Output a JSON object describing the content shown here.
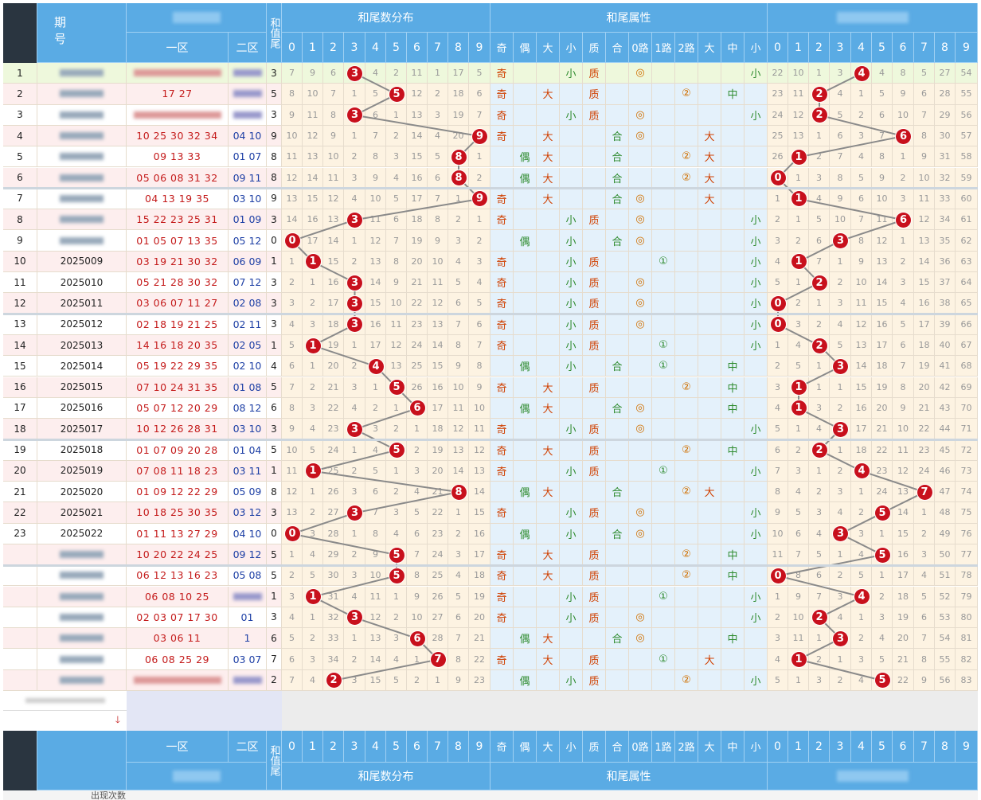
{
  "header": {
    "period_label": "期号",
    "zone1_label": "一区",
    "zone2_label": "二区",
    "sum_tail_label": "和值尾",
    "dist_title": "和尾数分布",
    "attr_title": "和尾属性",
    "digits": [
      "0",
      "1",
      "2",
      "3",
      "4",
      "5",
      "6",
      "7",
      "8",
      "9"
    ],
    "attr_cols": [
      "奇",
      "偶",
      "大",
      "小",
      "质",
      "合",
      "0路",
      "1路",
      "2路",
      "大",
      "中",
      "小"
    ]
  },
  "footer": {
    "appearance_label": "出现次数"
  },
  "colors": {
    "header_bg": "#5aabe4",
    "ball": "#c8101c",
    "row_highlight": "#f0f9e0",
    "row_even": "#fdeeee"
  },
  "rows": [
    {
      "idx": "1",
      "issue": "",
      "z1": "",
      "z2": "",
      "sum": "3",
      "dist": [
        "7",
        "9",
        "6",
        "3",
        "4",
        "2",
        "11",
        "1",
        "17",
        "5"
      ],
      "attrs": [
        "奇",
        "",
        "",
        "小",
        "质",
        "",
        "◎",
        "",
        "",
        "",
        "",
        "小"
      ],
      "dist2": [
        "22",
        "10",
        "1",
        "3",
        "4",
        "4",
        "8",
        "5",
        "27",
        "54"
      ],
      "tail2": 4
    },
    {
      "idx": "2",
      "issue": "",
      "z1": "17 27",
      "z2": "",
      "sum": "5",
      "dist": [
        "8",
        "10",
        "7",
        "1",
        "5",
        "5",
        "12",
        "2",
        "18",
        "6"
      ],
      "attrs": [
        "奇",
        "",
        "大",
        "",
        "质",
        "",
        "",
        "",
        "②",
        "",
        "中",
        ""
      ],
      "dist2": [
        "23",
        "11",
        "2",
        "4",
        "1",
        "5",
        "9",
        "6",
        "28",
        "55"
      ],
      "tail2": 2
    },
    {
      "idx": "3",
      "issue": "",
      "z1": "",
      "z2": "",
      "sum": "3",
      "dist": [
        "9",
        "11",
        "8",
        "3",
        "6",
        "1",
        "13",
        "3",
        "19",
        "7"
      ],
      "attrs": [
        "奇",
        "",
        "",
        "小",
        "质",
        "",
        "◎",
        "",
        "",
        "",
        "",
        "小"
      ],
      "dist2": [
        "24",
        "12",
        "2",
        "5",
        "2",
        "6",
        "10",
        "7",
        "29",
        "56"
      ],
      "tail2": 2
    },
    {
      "idx": "4",
      "issue": "",
      "z1": "10 25 30 32 34",
      "z2": "04 10",
      "sum": "9",
      "dist": [
        "10",
        "12",
        "9",
        "1",
        "7",
        "2",
        "14",
        "4",
        "20",
        "9"
      ],
      "attrs": [
        "奇",
        "",
        "大",
        "",
        "",
        "合",
        "◎",
        "",
        "",
        "大",
        "",
        ""
      ],
      "dist2": [
        "25",
        "13",
        "1",
        "6",
        "3",
        "7",
        "6",
        "8",
        "30",
        "57"
      ],
      "tail2": 6
    },
    {
      "idx": "5",
      "issue": "",
      "z1": "09 13 33",
      "z2": "01 07",
      "sum": "8",
      "dist": [
        "11",
        "13",
        "10",
        "2",
        "8",
        "3",
        "15",
        "5",
        "8",
        "1"
      ],
      "attrs": [
        "",
        "偶",
        "大",
        "",
        "",
        "合",
        "",
        "",
        "②",
        "大",
        "",
        ""
      ],
      "dist2": [
        "26",
        "1",
        "2",
        "7",
        "4",
        "8",
        "1",
        "9",
        "31",
        "58"
      ],
      "tail2": 1
    },
    {
      "idx": "6",
      "issue": "",
      "z1": "05 06 08 31 32",
      "z2": "09 11",
      "sum": "8",
      "dist": [
        "12",
        "14",
        "11",
        "3",
        "9",
        "4",
        "16",
        "6",
        "8",
        "2"
      ],
      "attrs": [
        "",
        "偶",
        "大",
        "",
        "",
        "合",
        "",
        "",
        "②",
        "大",
        "",
        ""
      ],
      "dist2": [
        "0",
        "1",
        "3",
        "8",
        "5",
        "9",
        "2",
        "10",
        "32",
        "59"
      ],
      "tail2": 0
    },
    {
      "idx": "7",
      "issue": "",
      "z1": "04 13 19 35",
      "z2": "03 10",
      "sum": "9",
      "dist": [
        "13",
        "15",
        "12",
        "4",
        "10",
        "5",
        "17",
        "7",
        "1",
        "9"
      ],
      "attrs": [
        "奇",
        "",
        "大",
        "",
        "",
        "合",
        "◎",
        "",
        "",
        "大",
        "",
        ""
      ],
      "dist2": [
        "1",
        "1",
        "4",
        "9",
        "6",
        "10",
        "3",
        "11",
        "33",
        "60"
      ],
      "tail2": 1
    },
    {
      "idx": "8",
      "issue": "",
      "z1": "15 22 23 25 31",
      "z2": "01 09",
      "sum": "3",
      "dist": [
        "14",
        "16",
        "13",
        "3",
        "11",
        "6",
        "18",
        "8",
        "2",
        "1"
      ],
      "attrs": [
        "奇",
        "",
        "",
        "小",
        "质",
        "",
        "◎",
        "",
        "",
        "",
        "",
        "小"
      ],
      "dist2": [
        "2",
        "1",
        "5",
        "10",
        "7",
        "11",
        "6",
        "12",
        "34",
        "61"
      ],
      "tail2": 6
    },
    {
      "idx": "9",
      "issue": "",
      "z1": "01 05 07 13 35",
      "z2": "05 12",
      "sum": "0",
      "dist": [
        "0",
        "17",
        "14",
        "1",
        "12",
        "7",
        "19",
        "9",
        "3",
        "2"
      ],
      "attrs": [
        "",
        "偶",
        "",
        "小",
        "",
        "合",
        "◎",
        "",
        "",
        "",
        "",
        "小"
      ],
      "dist2": [
        "3",
        "2",
        "6",
        "3",
        "8",
        "12",
        "1",
        "13",
        "35",
        "62"
      ],
      "tail2": 3
    },
    {
      "idx": "10",
      "issue": "2025009",
      "z1": "03 19 21 30 32",
      "z2": "06 09",
      "sum": "1",
      "dist": [
        "1",
        "1",
        "15",
        "2",
        "13",
        "8",
        "20",
        "10",
        "4",
        "3"
      ],
      "attrs": [
        "奇",
        "",
        "",
        "小",
        "质",
        "",
        "",
        "①",
        "",
        "",
        "",
        "小"
      ],
      "dist2": [
        "4",
        "1",
        "7",
        "1",
        "9",
        "13",
        "2",
        "14",
        "36",
        "63"
      ],
      "tail2": 1
    },
    {
      "idx": "11",
      "issue": "2025010",
      "z1": "05 21 28 30 32",
      "z2": "07 12",
      "sum": "3",
      "dist": [
        "2",
        "1",
        "16",
        "3",
        "14",
        "9",
        "21",
        "11",
        "5",
        "4"
      ],
      "attrs": [
        "奇",
        "",
        "",
        "小",
        "质",
        "",
        "◎",
        "",
        "",
        "",
        "",
        "小"
      ],
      "dist2": [
        "5",
        "1",
        "2",
        "2",
        "10",
        "14",
        "3",
        "15",
        "37",
        "64"
      ],
      "tail2": 2
    },
    {
      "idx": "12",
      "issue": "2025011",
      "z1": "03 06 07 11 27",
      "z2": "02 08",
      "sum": "3",
      "dist": [
        "3",
        "2",
        "17",
        "3",
        "15",
        "10",
        "22",
        "12",
        "6",
        "5"
      ],
      "attrs": [
        "奇",
        "",
        "",
        "小",
        "质",
        "",
        "◎",
        "",
        "",
        "",
        "",
        "小"
      ],
      "dist2": [
        "0",
        "2",
        "1",
        "3",
        "11",
        "15",
        "4",
        "16",
        "38",
        "65"
      ],
      "tail2": 0
    },
    {
      "idx": "13",
      "issue": "2025012",
      "z1": "02 18 19 21 25",
      "z2": "02 11",
      "sum": "3",
      "dist": [
        "4",
        "3",
        "18",
        "3",
        "16",
        "11",
        "23",
        "13",
        "7",
        "6"
      ],
      "attrs": [
        "奇",
        "",
        "",
        "小",
        "质",
        "",
        "◎",
        "",
        "",
        "",
        "",
        "小"
      ],
      "dist2": [
        "0",
        "3",
        "2",
        "4",
        "12",
        "16",
        "5",
        "17",
        "39",
        "66"
      ],
      "tail2": 0
    },
    {
      "idx": "14",
      "issue": "2025013",
      "z1": "14 16 18 20 35",
      "z2": "02 05",
      "sum": "1",
      "dist": [
        "5",
        "1",
        "19",
        "1",
        "17",
        "12",
        "24",
        "14",
        "8",
        "7"
      ],
      "attrs": [
        "奇",
        "",
        "",
        "小",
        "质",
        "",
        "",
        "①",
        "",
        "",
        "",
        "小"
      ],
      "dist2": [
        "1",
        "4",
        "2",
        "5",
        "13",
        "17",
        "6",
        "18",
        "40",
        "67"
      ],
      "tail2": 2
    },
    {
      "idx": "15",
      "issue": "2025014",
      "z1": "05 19 22 29 35",
      "z2": "02 10",
      "sum": "4",
      "dist": [
        "6",
        "1",
        "20",
        "2",
        "4",
        "13",
        "25",
        "15",
        "9",
        "8"
      ],
      "attrs": [
        "",
        "偶",
        "",
        "小",
        "",
        "合",
        "",
        "①",
        "",
        "",
        "中",
        ""
      ],
      "dist2": [
        "2",
        "5",
        "1",
        "3",
        "14",
        "18",
        "7",
        "19",
        "41",
        "68"
      ],
      "tail2": 3
    },
    {
      "idx": "16",
      "issue": "2025015",
      "z1": "07 10 24 31 35",
      "z2": "01 08",
      "sum": "5",
      "dist": [
        "7",
        "2",
        "21",
        "3",
        "1",
        "5",
        "26",
        "16",
        "10",
        "9"
      ],
      "attrs": [
        "奇",
        "",
        "大",
        "",
        "质",
        "",
        "",
        "",
        "②",
        "",
        "中",
        ""
      ],
      "dist2": [
        "3",
        "1",
        "1",
        "1",
        "15",
        "19",
        "8",
        "20",
        "42",
        "69"
      ],
      "tail2": 1
    },
    {
      "idx": "17",
      "issue": "2025016",
      "z1": "05 07 12 20 29",
      "z2": "08 12",
      "sum": "6",
      "dist": [
        "8",
        "3",
        "22",
        "4",
        "2",
        "1",
        "6",
        "17",
        "11",
        "10"
      ],
      "attrs": [
        "",
        "偶",
        "大",
        "",
        "",
        "合",
        "◎",
        "",
        "",
        "",
        "中",
        ""
      ],
      "dist2": [
        "4",
        "1",
        "3",
        "2",
        "16",
        "20",
        "9",
        "21",
        "43",
        "70"
      ],
      "tail2": 1
    },
    {
      "idx": "18",
      "issue": "2025017",
      "z1": "10 12 26 28 31",
      "z2": "03 10",
      "sum": "3",
      "dist": [
        "9",
        "4",
        "23",
        "3",
        "3",
        "2",
        "1",
        "18",
        "12",
        "11"
      ],
      "attrs": [
        "奇",
        "",
        "",
        "小",
        "质",
        "",
        "◎",
        "",
        "",
        "",
        "",
        "小"
      ],
      "dist2": [
        "5",
        "1",
        "4",
        "3",
        "17",
        "21",
        "10",
        "22",
        "44",
        "71"
      ],
      "tail2": 3
    },
    {
      "idx": "19",
      "issue": "2025018",
      "z1": "01 07 09 20 28",
      "z2": "01 04",
      "sum": "5",
      "dist": [
        "10",
        "5",
        "24",
        "1",
        "4",
        "5",
        "2",
        "19",
        "13",
        "12"
      ],
      "attrs": [
        "奇",
        "",
        "大",
        "",
        "质",
        "",
        "",
        "",
        "②",
        "",
        "中",
        ""
      ],
      "dist2": [
        "6",
        "2",
        "2",
        "1",
        "18",
        "22",
        "11",
        "23",
        "45",
        "72"
      ],
      "tail2": 2
    },
    {
      "idx": "20",
      "issue": "2025019",
      "z1": "07 08 11 18 23",
      "z2": "03 11",
      "sum": "1",
      "dist": [
        "11",
        "1",
        "25",
        "2",
        "5",
        "1",
        "3",
        "20",
        "14",
        "13"
      ],
      "attrs": [
        "奇",
        "",
        "",
        "小",
        "质",
        "",
        "",
        "①",
        "",
        "",
        "",
        "小"
      ],
      "dist2": [
        "7",
        "3",
        "1",
        "2",
        "4",
        "23",
        "12",
        "24",
        "46",
        "73"
      ],
      "tail2": 4
    },
    {
      "idx": "21",
      "issue": "2025020",
      "z1": "01 09 12 22 29",
      "z2": "05 09",
      "sum": "8",
      "dist": [
        "12",
        "1",
        "26",
        "3",
        "6",
        "2",
        "4",
        "21",
        "8",
        "14"
      ],
      "attrs": [
        "",
        "偶",
        "大",
        "",
        "",
        "合",
        "",
        "",
        "②",
        "大",
        "",
        ""
      ],
      "dist2": [
        "8",
        "4",
        "2",
        "3",
        "1",
        "24",
        "13",
        "7",
        "47",
        "74"
      ],
      "tail2": 7
    },
    {
      "idx": "22",
      "issue": "2025021",
      "z1": "10 18 25 30 35",
      "z2": "03 12",
      "sum": "3",
      "dist": [
        "13",
        "2",
        "27",
        "3",
        "7",
        "3",
        "5",
        "22",
        "1",
        "15"
      ],
      "attrs": [
        "奇",
        "",
        "",
        "小",
        "质",
        "",
        "◎",
        "",
        "",
        "",
        "",
        "小"
      ],
      "dist2": [
        "9",
        "5",
        "3",
        "4",
        "2",
        "5",
        "14",
        "1",
        "48",
        "75"
      ],
      "tail2": 5
    },
    {
      "idx": "23",
      "issue": "2025022",
      "z1": "01 11 13 27 29",
      "z2": "04 10",
      "sum": "0",
      "dist": [
        "0",
        "3",
        "28",
        "1",
        "8",
        "4",
        "6",
        "23",
        "2",
        "16"
      ],
      "attrs": [
        "",
        "偶",
        "",
        "小",
        "",
        "合",
        "◎",
        "",
        "",
        "",
        "",
        "小"
      ],
      "dist2": [
        "10",
        "6",
        "4",
        "3",
        "3",
        "1",
        "15",
        "2",
        "49",
        "76"
      ],
      "tail2": 3
    },
    {
      "idx": "",
      "issue": "",
      "z1": "10 20 22 24 25",
      "z2": "09 12",
      "sum": "5",
      "dist": [
        "1",
        "4",
        "29",
        "2",
        "9",
        "5",
        "7",
        "24",
        "3",
        "17"
      ],
      "attrs": [
        "奇",
        "",
        "大",
        "",
        "质",
        "",
        "",
        "",
        "②",
        "",
        "中",
        ""
      ],
      "dist2": [
        "11",
        "7",
        "5",
        "1",
        "4",
        "5",
        "16",
        "3",
        "50",
        "77"
      ],
      "tail2": 5
    },
    {
      "idx": "",
      "issue": "",
      "z1": "06 12 13 16 23",
      "z2": "05 08",
      "sum": "5",
      "dist": [
        "2",
        "5",
        "30",
        "3",
        "10",
        "5",
        "8",
        "25",
        "4",
        "18"
      ],
      "attrs": [
        "奇",
        "",
        "大",
        "",
        "质",
        "",
        "",
        "",
        "②",
        "",
        "中",
        ""
      ],
      "dist2": [
        "0",
        "8",
        "6",
        "2",
        "5",
        "1",
        "17",
        "4",
        "51",
        "78"
      ],
      "tail2": 0
    },
    {
      "idx": "",
      "issue": "",
      "z1": "06 08 10 25",
      "z2": "",
      "sum": "1",
      "dist": [
        "3",
        "1",
        "31",
        "4",
        "11",
        "1",
        "9",
        "26",
        "5",
        "19"
      ],
      "attrs": [
        "奇",
        "",
        "",
        "小",
        "质",
        "",
        "",
        "①",
        "",
        "",
        "",
        "小"
      ],
      "dist2": [
        "1",
        "9",
        "7",
        "3",
        "4",
        "2",
        "18",
        "5",
        "52",
        "79"
      ],
      "tail2": 4
    },
    {
      "idx": "",
      "issue": "",
      "z1": "02 03 07 17 30",
      "z2": "01",
      "sum": "3",
      "dist": [
        "4",
        "1",
        "32",
        "3",
        "12",
        "2",
        "10",
        "27",
        "6",
        "20"
      ],
      "attrs": [
        "奇",
        "",
        "",
        "小",
        "质",
        "",
        "◎",
        "",
        "",
        "",
        "",
        "小"
      ],
      "dist2": [
        "2",
        "10",
        "2",
        "4",
        "1",
        "3",
        "19",
        "6",
        "53",
        "80"
      ],
      "tail2": 2
    },
    {
      "idx": "",
      "issue": "",
      "z1": "03 06 11",
      "z2": "1",
      "sum": "6",
      "dist": [
        "5",
        "2",
        "33",
        "1",
        "13",
        "3",
        "6",
        "28",
        "7",
        "21"
      ],
      "attrs": [
        "",
        "偶",
        "大",
        "",
        "",
        "合",
        "◎",
        "",
        "",
        "",
        "中",
        ""
      ],
      "dist2": [
        "3",
        "11",
        "1",
        "3",
        "2",
        "4",
        "20",
        "7",
        "54",
        "81"
      ],
      "tail2": 3
    },
    {
      "idx": "",
      "issue": "",
      "z1": "06 08 25 29",
      "z2": "03 07",
      "sum": "7",
      "dist": [
        "6",
        "3",
        "34",
        "2",
        "14",
        "4",
        "1",
        "7",
        "8",
        "22"
      ],
      "attrs": [
        "奇",
        "",
        "大",
        "",
        "质",
        "",
        "",
        "①",
        "",
        "大",
        "",
        ""
      ],
      "dist2": [
        "4",
        "1",
        "2",
        "1",
        "3",
        "5",
        "21",
        "8",
        "55",
        "82"
      ],
      "tail2": 1
    },
    {
      "idx": "",
      "issue": "",
      "z1": "",
      "z2": "",
      "sum": "2",
      "dist": [
        "7",
        "4",
        "2",
        "3",
        "15",
        "5",
        "2",
        "1",
        "9",
        "23"
      ],
      "attrs": [
        "",
        "偶",
        "",
        "小",
        "质",
        "",
        "",
        "",
        "②",
        "",
        "",
        "小"
      ],
      "dist2": [
        "5",
        "1",
        "3",
        "2",
        "4",
        "5",
        "22",
        "9",
        "56",
        "83"
      ],
      "tail2": 5
    }
  ]
}
